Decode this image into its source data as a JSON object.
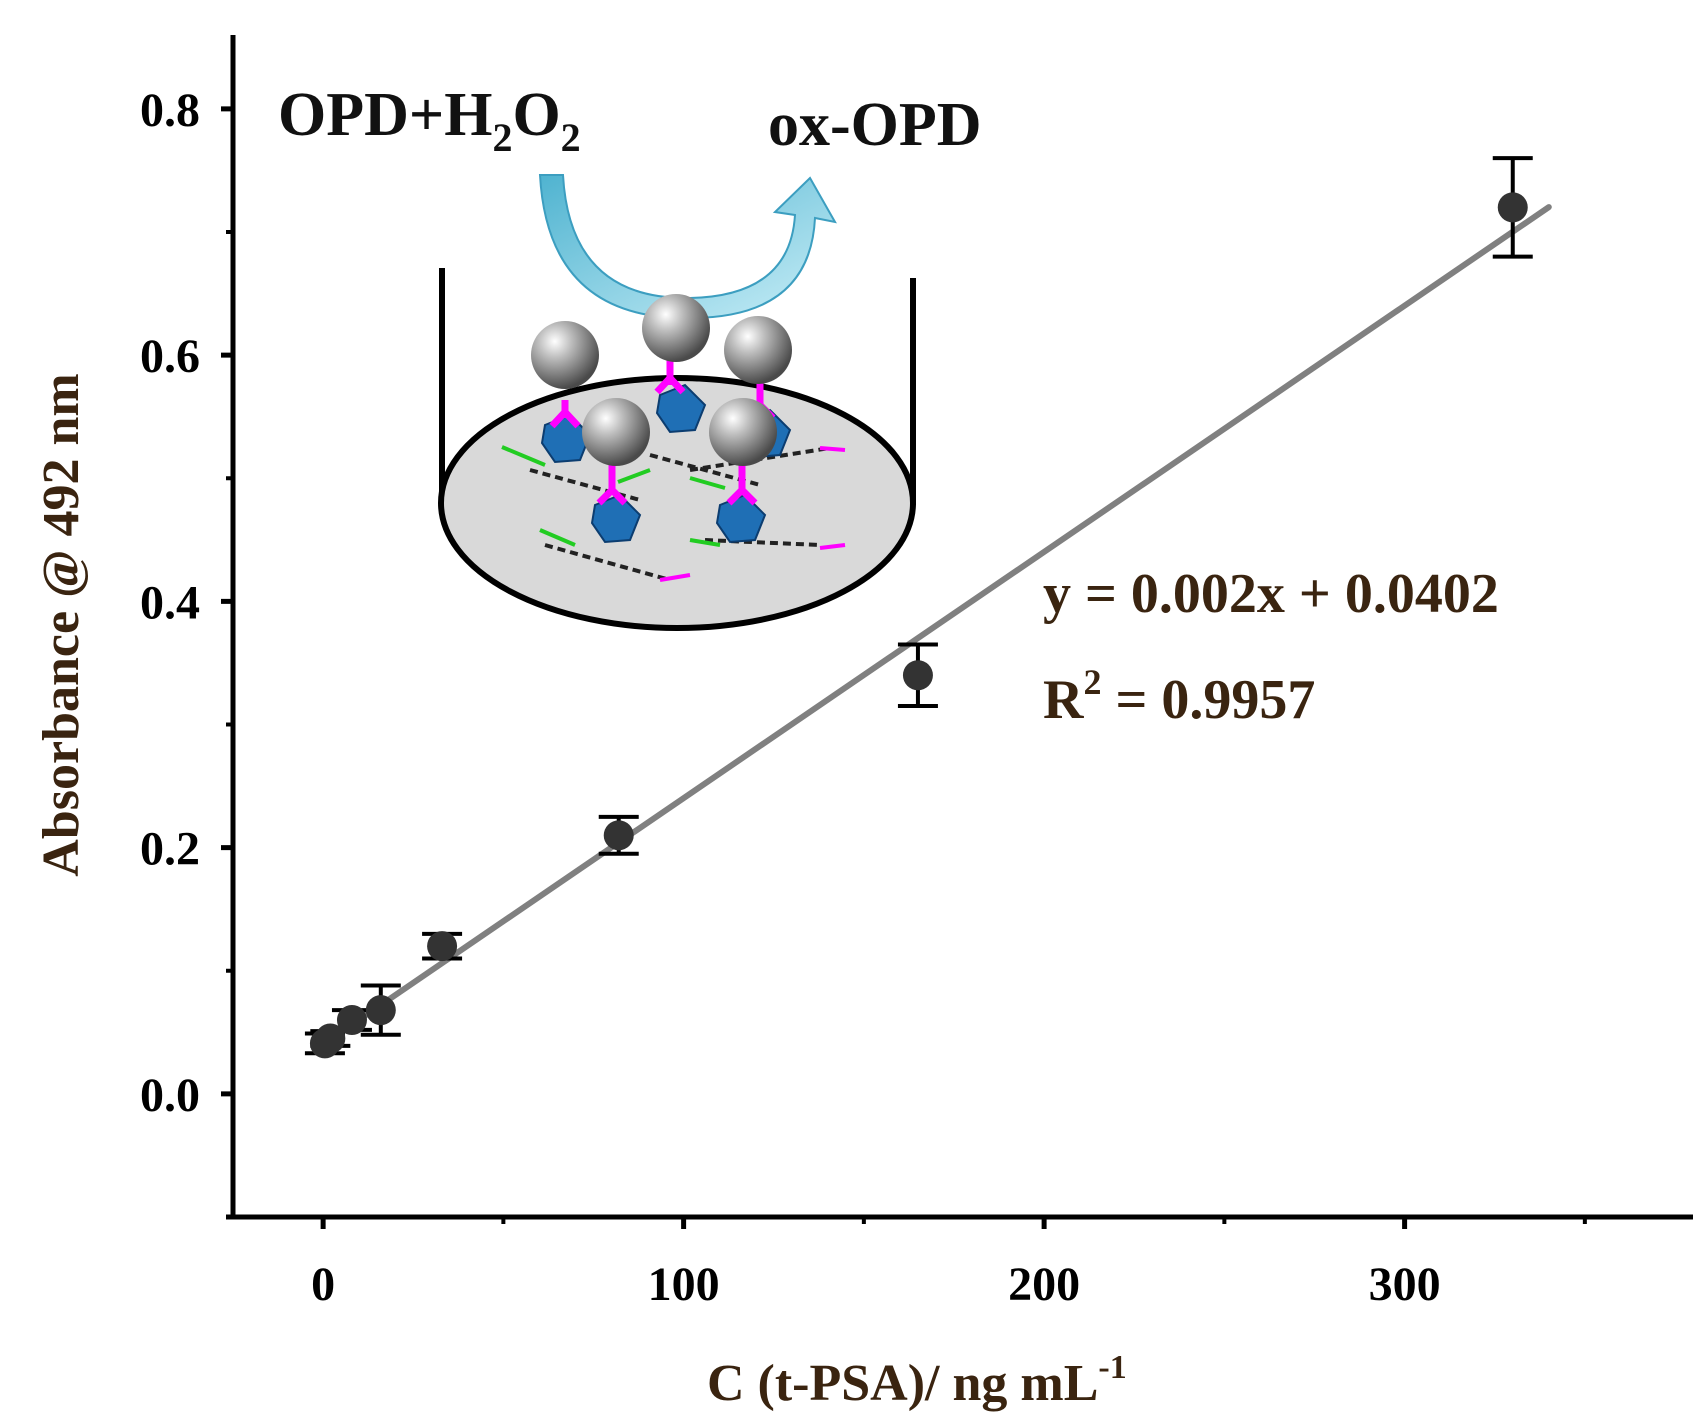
{
  "chart_data": {
    "type": "scatter",
    "xlabel": {
      "main": "C (t-PSA)/ ng mL",
      "sup": "-1"
    },
    "ylabel": "Absorbance @ 492 nm",
    "xlim": [
      -25,
      380
    ],
    "ylim": [
      -0.1,
      0.86
    ],
    "x_ticks": [
      0,
      100,
      200,
      300
    ],
    "x_minor_ticks": [
      50,
      150,
      250,
      350
    ],
    "y_ticks": [
      0.0,
      0.2,
      0.4,
      0.6,
      0.8
    ],
    "y_tick_labels": [
      "0.0",
      "0.2",
      "0.4",
      "0.6",
      "0.8"
    ],
    "y_minor_ticks": [
      0.1,
      0.3,
      0.5,
      0.7
    ],
    "series": [
      {
        "points": [
          {
            "x": 0.5,
            "y": 0.041,
            "err": 0.008
          },
          {
            "x": 2,
            "y": 0.045,
            "err": 0.006
          },
          {
            "x": 8,
            "y": 0.06,
            "err": 0.008
          },
          {
            "x": 16,
            "y": 0.068,
            "err": 0.02
          },
          {
            "x": 33,
            "y": 0.12,
            "err": 0.01
          },
          {
            "x": 82,
            "y": 0.21,
            "err": 0.015
          },
          {
            "x": 165,
            "y": 0.34,
            "err": 0.025
          },
          {
            "x": 330,
            "y": 0.72,
            "err": 0.04
          }
        ],
        "marker_color": "#333333"
      }
    ],
    "fit": {
      "slope": 0.002,
      "intercept": 0.0402,
      "x_range": [
        0,
        340
      ],
      "color": "#808080"
    },
    "annotations": {
      "equation": "y = 0.002x + 0.0402",
      "r2_prefix": "R",
      "r2_sup": "2",
      "r2_value": " = 0.9957"
    },
    "inset": {
      "reactant_main": "OPD+H",
      "reactant_sub1": "2",
      "reactant_mid": "O",
      "reactant_sub2": "2",
      "product": "ox-OPD",
      "arrow_color": "#7ccde0",
      "dish_fill": "#d9d9d9",
      "sphere_color": "#888888",
      "antibody_color": "#ff00ff",
      "antigen_color": "#1f6fb5"
    }
  }
}
